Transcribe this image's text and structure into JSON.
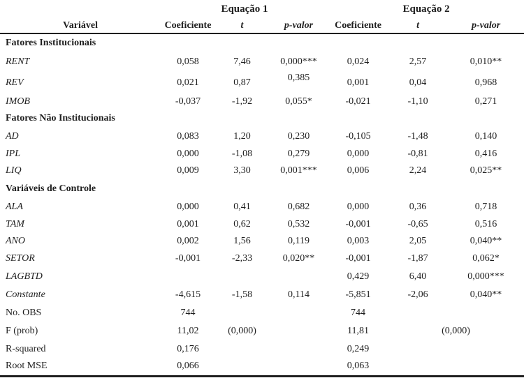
{
  "page": {
    "background": "#ffffff",
    "text_color": "#1f1f1f",
    "rule_color": "#1f1f1f"
  },
  "table": {
    "equation_headers": [
      "Equação 1",
      "Equação 2"
    ],
    "column_headers": {
      "variable": "Variável",
      "coefficient": "Coeficiente",
      "t": "t",
      "p_value": "p-valor"
    },
    "rows": [
      {
        "type": "section",
        "label": "Fatores Institucionais"
      },
      {
        "type": "data",
        "label": "RENT",
        "cells": [
          "0,058",
          "7,46",
          "0,000***",
          "0,024",
          "2,57",
          "0,010**"
        ]
      },
      {
        "type": "data",
        "label": "REV",
        "cells": [
          "0,021",
          "0,87",
          "0,385",
          "0,001",
          "0,04",
          "0,968"
        ],
        "raised_p1": true
      },
      {
        "type": "data",
        "label": "IMOB",
        "cells": [
          "-0,037",
          "-1,92",
          "0,055*",
          "-0,021",
          "-1,10",
          "0,271"
        ]
      },
      {
        "type": "section",
        "label": "Fatores Não Institucionais"
      },
      {
        "type": "data",
        "label": "AD",
        "cells": [
          "0,083",
          "1,20",
          "0,230",
          "-0,105",
          "-1,48",
          "0,140"
        ]
      },
      {
        "type": "data",
        "label": "IPL",
        "cells": [
          "0,000",
          "-1,08",
          "0,279",
          "0,000",
          "-0,81",
          "0,416"
        ]
      },
      {
        "type": "data",
        "label": "LIQ",
        "cells": [
          "0,009",
          "3,30",
          "0,001***",
          "0,006",
          "2,24",
          "0,025**"
        ]
      },
      {
        "type": "section",
        "label": "Variáveis de Controle"
      },
      {
        "type": "data",
        "label": "ALA",
        "cells": [
          "0,000",
          "0,41",
          "0,682",
          "0,000",
          "0,36",
          "0,718"
        ]
      },
      {
        "type": "data",
        "label": "TAM",
        "cells": [
          "0,001",
          "0,62",
          "0,532",
          "-0,001",
          "-0,65",
          "0,516"
        ]
      },
      {
        "type": "data",
        "label": "ANO",
        "cells": [
          "0,002",
          "1,56",
          "0,119",
          "0,003",
          "2,05",
          "0,040**"
        ]
      },
      {
        "type": "data",
        "label": "SETOR",
        "cells": [
          "-0,001",
          "-2,33",
          "0,020**",
          "-0,001",
          "-1,87",
          "0,062*"
        ]
      },
      {
        "type": "data",
        "label": "LAGBTD",
        "cells": [
          "",
          "",
          "",
          "0,429",
          "6,40",
          "0,000***"
        ]
      },
      {
        "type": "data",
        "label": "Constante",
        "cells": [
          "-4,615",
          "-1,58",
          "0,114",
          "-5,851",
          "-2,06",
          "0,040**"
        ]
      },
      {
        "type": "summary",
        "label": "No. OBS",
        "cells": [
          "744",
          "",
          "",
          "744",
          "",
          ""
        ]
      },
      {
        "type": "summary",
        "label": "F (prob)",
        "cells": [
          "11,02",
          "(0,000)",
          "",
          "11,81",
          "(0,000)"
        ],
        "merge_t2_p2": true
      },
      {
        "type": "summary",
        "label": "R-squared",
        "cells": [
          "0,176",
          "",
          "",
          "0,249",
          "",
          ""
        ]
      },
      {
        "type": "summary",
        "label": "Root MSE",
        "cells": [
          "0,066",
          "",
          "",
          "0,063",
          "",
          ""
        ]
      }
    ]
  }
}
